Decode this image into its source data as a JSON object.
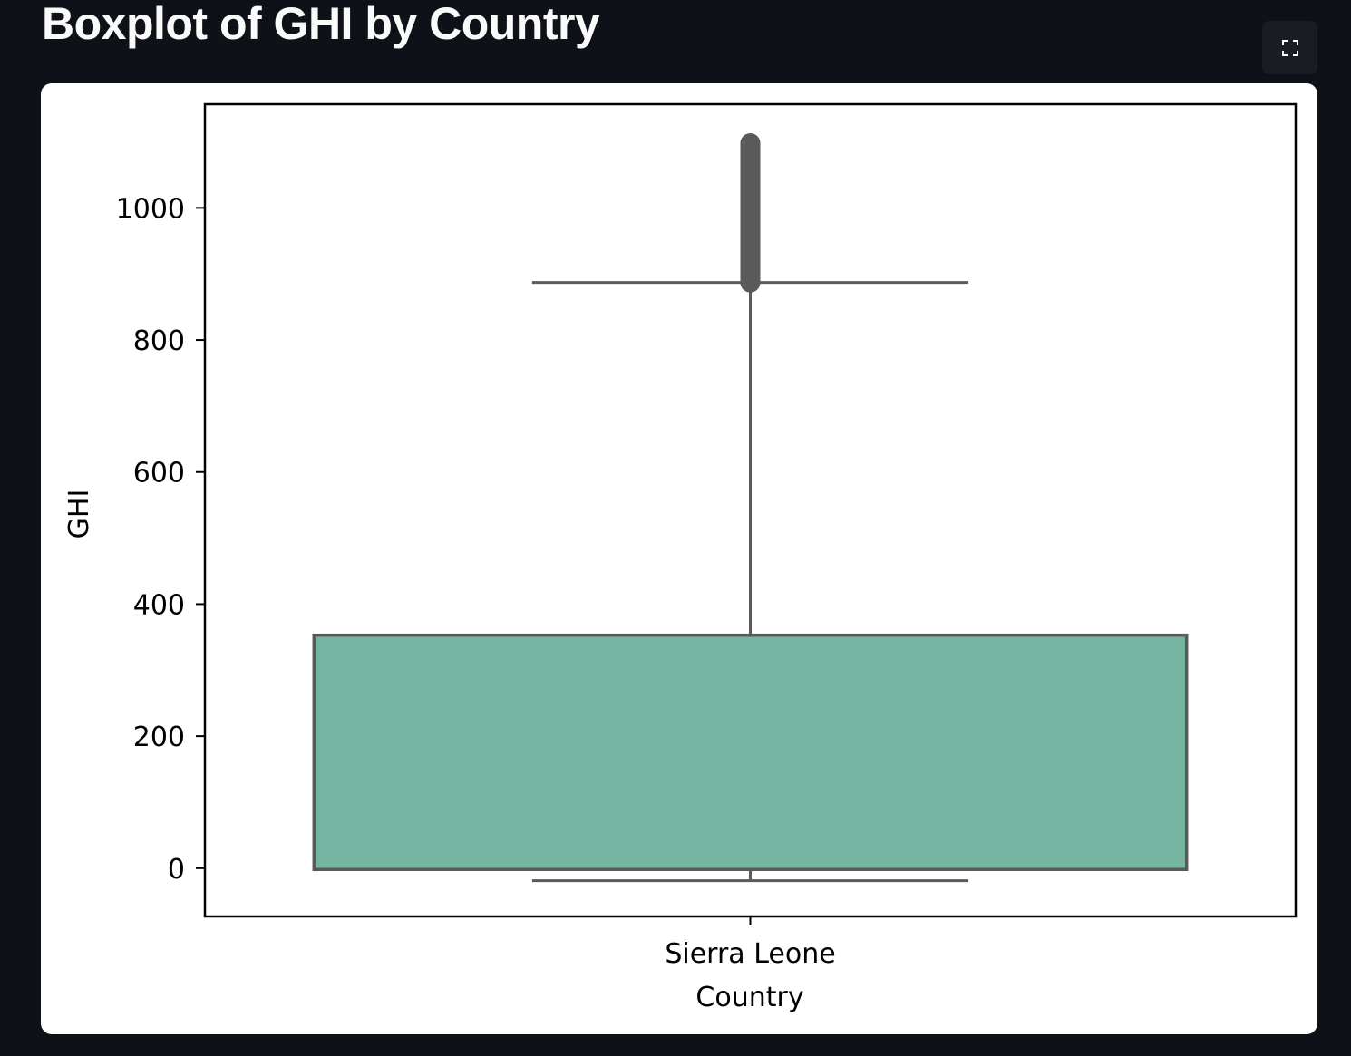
{
  "page": {
    "heading": "Boxplot of GHI by Country"
  },
  "toolbar": {
    "fullscreen_icon": "fullscreen-expand-icon"
  },
  "colors": {
    "page_bg": "#0e1117",
    "box_fill": "#76b5a2",
    "box_edge": "#5a5a5a",
    "outlier": "#5a5a5a"
  },
  "chart_data": {
    "type": "box",
    "title": "",
    "xlabel": "Country",
    "ylabel": "GHI",
    "categories": [
      "Sierra Leone"
    ],
    "boxes": [
      {
        "category": "Sierra Leone",
        "whisker_low": -19,
        "q1": -2,
        "median": -2,
        "q3": 353,
        "whisker_high": 887,
        "outliers_from": 887,
        "outliers_to": 1098
      }
    ],
    "yticks": [
      0,
      200,
      400,
      600,
      800,
      1000
    ],
    "ylim": [
      -73,
      1157
    ],
    "grid": false,
    "legend": false
  }
}
